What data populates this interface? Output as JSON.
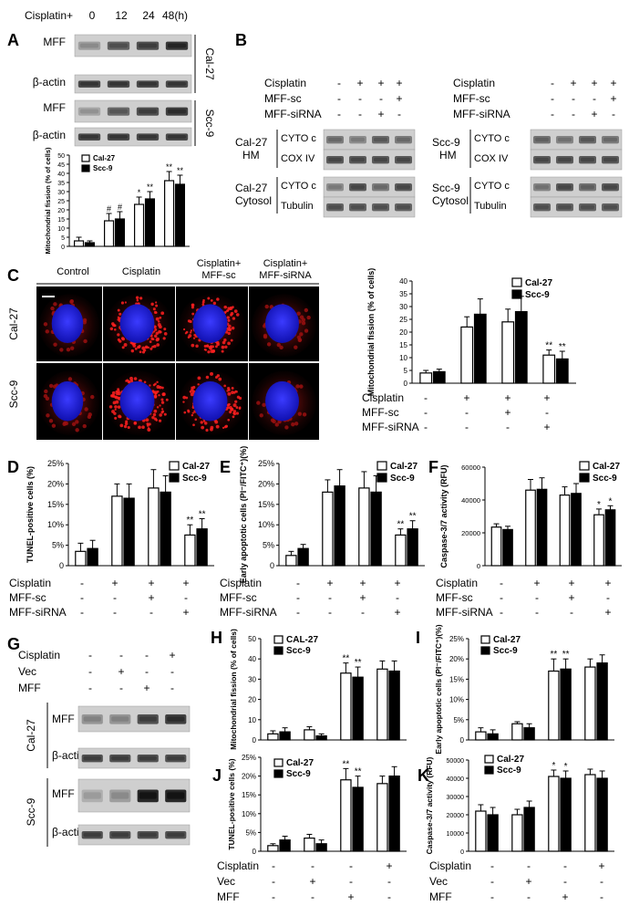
{
  "panels": {
    "A": {
      "letter": "A",
      "cis_label": "Cisplatin+",
      "times": [
        "0",
        "12",
        "24",
        "48(h)"
      ],
      "rows": [
        "MFF",
        "β-actin",
        "MFF",
        "β-actin"
      ],
      "cells": [
        "Cal-27",
        "Scc-9"
      ]
    },
    "B": {
      "letter": "B",
      "treat_rows": [
        "Cisplatin",
        "MFF-sc",
        "MFF-siRNA"
      ],
      "signs": [
        [
          "-",
          "+",
          "+",
          "+"
        ],
        [
          "-",
          "-",
          "-",
          "+"
        ],
        [
          "-",
          "-",
          "+",
          "-"
        ]
      ],
      "left": {
        "g1a": "Cal-27",
        "g1b": "HM",
        "g2a": "Cal-27",
        "g2b": "Cytosol"
      },
      "right": {
        "g1a": "Scc-9",
        "g1b": "HM",
        "g2a": "Scc-9",
        "g2b": "Cytosol"
      },
      "bands": [
        "CYTO c",
        "COX IV",
        "CYTO c",
        "Tubulin"
      ]
    },
    "C": {
      "letter": "C",
      "cols": [
        "Control",
        "Cisplatin",
        "Cisplatin+",
        "MFF-sc",
        "Cisplatin+",
        "MFF-siRNA"
      ],
      "rows": [
        "Cal-27",
        "Scc-9"
      ]
    },
    "D": {
      "letter": "D"
    },
    "E": {
      "letter": "E"
    },
    "F": {
      "letter": "F"
    },
    "G": {
      "letter": "G",
      "treat_rows": [
        "Cisplatin",
        "Vec",
        "MFF"
      ],
      "signs": [
        [
          "-",
          "-",
          "-",
          "+"
        ],
        [
          "-",
          "+",
          "-",
          "-"
        ],
        [
          "-",
          "-",
          "+",
          "-"
        ]
      ],
      "bands": [
        "MFF",
        "β-actin",
        "MFF",
        "β-actin"
      ],
      "cells": [
        "Cal-27",
        "Scc-9"
      ]
    },
    "H": {
      "letter": "H"
    },
    "I": {
      "letter": "I"
    },
    "J": {
      "letter": "J"
    },
    "K": {
      "letter": "K"
    }
  },
  "treatments_cde": {
    "labels": [
      "Cisplatin",
      "MFF-sc",
      "MFF-siRNA"
    ],
    "signs": [
      [
        "-",
        "+",
        "+",
        "+"
      ],
      [
        "-",
        "-",
        "+",
        "-"
      ],
      [
        "-",
        "-",
        "-",
        "+"
      ]
    ]
  },
  "treatments_hk": {
    "labels": [
      "Cisplatin",
      "Vec",
      "MFF"
    ],
    "signs": [
      [
        "-",
        "-",
        "-",
        "+"
      ],
      [
        "-",
        "+",
        "-",
        "-"
      ],
      [
        "-",
        "-",
        "+",
        "-"
      ]
    ]
  },
  "chart_data": [
    {
      "id": "A",
      "type": "bar",
      "ylabel": "Mitochondrial fission (% of cells)",
      "yticks": [
        0,
        5,
        10,
        15,
        20,
        25,
        30,
        35,
        40,
        45,
        50
      ],
      "ylim": [
        0,
        50
      ],
      "series": [
        {
          "name": "Cal-27",
          "values": [
            3,
            14,
            23,
            36
          ],
          "err": [
            2,
            4,
            4,
            5
          ],
          "marks": [
            "",
            "#",
            "*",
            "**"
          ]
        },
        {
          "name": "Scc-9",
          "values": [
            2,
            15,
            26,
            34
          ],
          "err": [
            1,
            4,
            4,
            5
          ],
          "marks": [
            "",
            "#",
            "**",
            "**"
          ]
        }
      ]
    },
    {
      "id": "C",
      "type": "bar",
      "ylabel": "Mitochondrial fission (% of cells)",
      "yticks": [
        0,
        5,
        10,
        15,
        20,
        25,
        30,
        35,
        40
      ],
      "ylim": [
        0,
        40
      ],
      "series": [
        {
          "name": "Cal-27",
          "values": [
            4,
            22,
            24,
            11
          ],
          "err": [
            1,
            4,
            5,
            2
          ],
          "marks": [
            "",
            "",
            "",
            "**"
          ]
        },
        {
          "name": "Scc-9",
          "values": [
            4.5,
            27,
            28,
            9.5
          ],
          "err": [
            1,
            6,
            6,
            3
          ],
          "marks": [
            "",
            "",
            "",
            "**"
          ]
        }
      ]
    },
    {
      "id": "D",
      "type": "bar",
      "ylabel": "TUNEL-positive cells (%)",
      "yticks": [
        "0",
        "5%",
        "10%",
        "15%",
        "20%",
        "25%"
      ],
      "ylim": [
        0,
        25
      ],
      "series": [
        {
          "name": "Cal-27",
          "values": [
            3.5,
            17,
            19,
            7.5
          ],
          "err": [
            2,
            3,
            4.5,
            2.5
          ],
          "marks": [
            "",
            "",
            "",
            "**"
          ]
        },
        {
          "name": "Scc-9",
          "values": [
            4.2,
            16.5,
            18,
            9
          ],
          "err": [
            2,
            3.5,
            4,
            2.5
          ],
          "marks": [
            "",
            "",
            "",
            "**"
          ]
        }
      ]
    },
    {
      "id": "E",
      "type": "bar",
      "ylabel": "Early apoptotic cells (PI⁻/FITC⁺)(%)",
      "yticks": [
        "0",
        "5%",
        "10%",
        "15%",
        "20%",
        "25%"
      ],
      "ylim": [
        0,
        25
      ],
      "series": [
        {
          "name": "Cal-27",
          "values": [
            2.5,
            18,
            19,
            7.5
          ],
          "err": [
            1,
            3,
            4,
            1.5
          ],
          "marks": [
            "",
            "",
            "",
            "**"
          ]
        },
        {
          "name": "Scc-9",
          "values": [
            4.2,
            19.5,
            18,
            9
          ],
          "err": [
            1,
            4,
            4,
            2
          ],
          "marks": [
            "",
            "",
            "",
            "**"
          ]
        }
      ]
    },
    {
      "id": "F",
      "type": "bar",
      "ylabel": "Caspase-3/7 activity (RFU)",
      "yticks": [
        0,
        20000,
        40000,
        60000
      ],
      "ylim": [
        0,
        60000
      ],
      "series": [
        {
          "name": "Cal-27",
          "values": [
            23500,
            46000,
            43000,
            31000
          ],
          "err": [
            2000,
            6500,
            5000,
            3500
          ],
          "marks": [
            "",
            "",
            "",
            "*"
          ]
        },
        {
          "name": "Scc-9",
          "values": [
            22000,
            46500,
            44000,
            34000
          ],
          "err": [
            2000,
            7000,
            6000,
            2500
          ],
          "marks": [
            "",
            "",
            "",
            "*"
          ]
        }
      ]
    },
    {
      "id": "H",
      "type": "bar",
      "ylabel": "Mitochondrial fission (% of cells)",
      "yticks": [
        0,
        10,
        20,
        30,
        40,
        50
      ],
      "ylim": [
        0,
        50
      ],
      "series": [
        {
          "name": "CAL-27",
          "values": [
            3,
            5,
            33,
            35
          ],
          "err": [
            1.5,
            1.5,
            5,
            4
          ],
          "marks": [
            "",
            "",
            "**",
            ""
          ]
        },
        {
          "name": "Scc-9",
          "values": [
            4,
            2,
            31,
            34
          ],
          "err": [
            2,
            1,
            5,
            5
          ],
          "marks": [
            "",
            "",
            "**",
            ""
          ]
        }
      ]
    },
    {
      "id": "I",
      "type": "bar",
      "ylabel": "Early apoptotic cells (PI⁻/FITC⁺)(%)",
      "yticks": [
        "0",
        "5%",
        "10%",
        "15%",
        "20%",
        "25%"
      ],
      "ylim": [
        0,
        25
      ],
      "series": [
        {
          "name": "Cal-27",
          "values": [
            2,
            4,
            17,
            18
          ],
          "err": [
            1,
            0.5,
            3,
            2
          ],
          "marks": [
            "",
            "",
            "**",
            ""
          ]
        },
        {
          "name": "Scc-9",
          "values": [
            1.5,
            3,
            17.5,
            19
          ],
          "err": [
            1,
            1,
            2.5,
            2
          ],
          "marks": [
            "",
            "",
            "**",
            ""
          ]
        }
      ]
    },
    {
      "id": "J",
      "type": "bar",
      "ylabel": "TUNEL-positive cells (%)",
      "yticks": [
        "0",
        "5%",
        "10%",
        "15%",
        "20%",
        "25%"
      ],
      "ylim": [
        0,
        25
      ],
      "series": [
        {
          "name": "Cal-27",
          "values": [
            1.5,
            3.5,
            19,
            18
          ],
          "err": [
            0.5,
            1,
            3,
            2
          ],
          "marks": [
            "",
            "",
            "**",
            ""
          ]
        },
        {
          "name": "Scc-9",
          "values": [
            3,
            2,
            17,
            20
          ],
          "err": [
            1,
            1,
            3,
            2.5
          ],
          "marks": [
            "",
            "",
            "**",
            ""
          ]
        }
      ]
    },
    {
      "id": "K",
      "type": "bar",
      "ylabel": "Caspase-3/7 activity (RFU)",
      "yticks": [
        0,
        10000,
        20000,
        30000,
        40000,
        50000
      ],
      "ylim": [
        0,
        50000
      ],
      "series": [
        {
          "name": "Cal-27",
          "values": [
            22000,
            20000,
            41000,
            42000
          ],
          "err": [
            3500,
            3000,
            3500,
            3000
          ],
          "marks": [
            "",
            "",
            "*",
            ""
          ]
        },
        {
          "name": "Scc-9",
          "values": [
            20000,
            24000,
            40000,
            40000
          ],
          "err": [
            4000,
            3500,
            4000,
            4000
          ],
          "marks": [
            "",
            "",
            "*",
            ""
          ]
        }
      ]
    }
  ]
}
